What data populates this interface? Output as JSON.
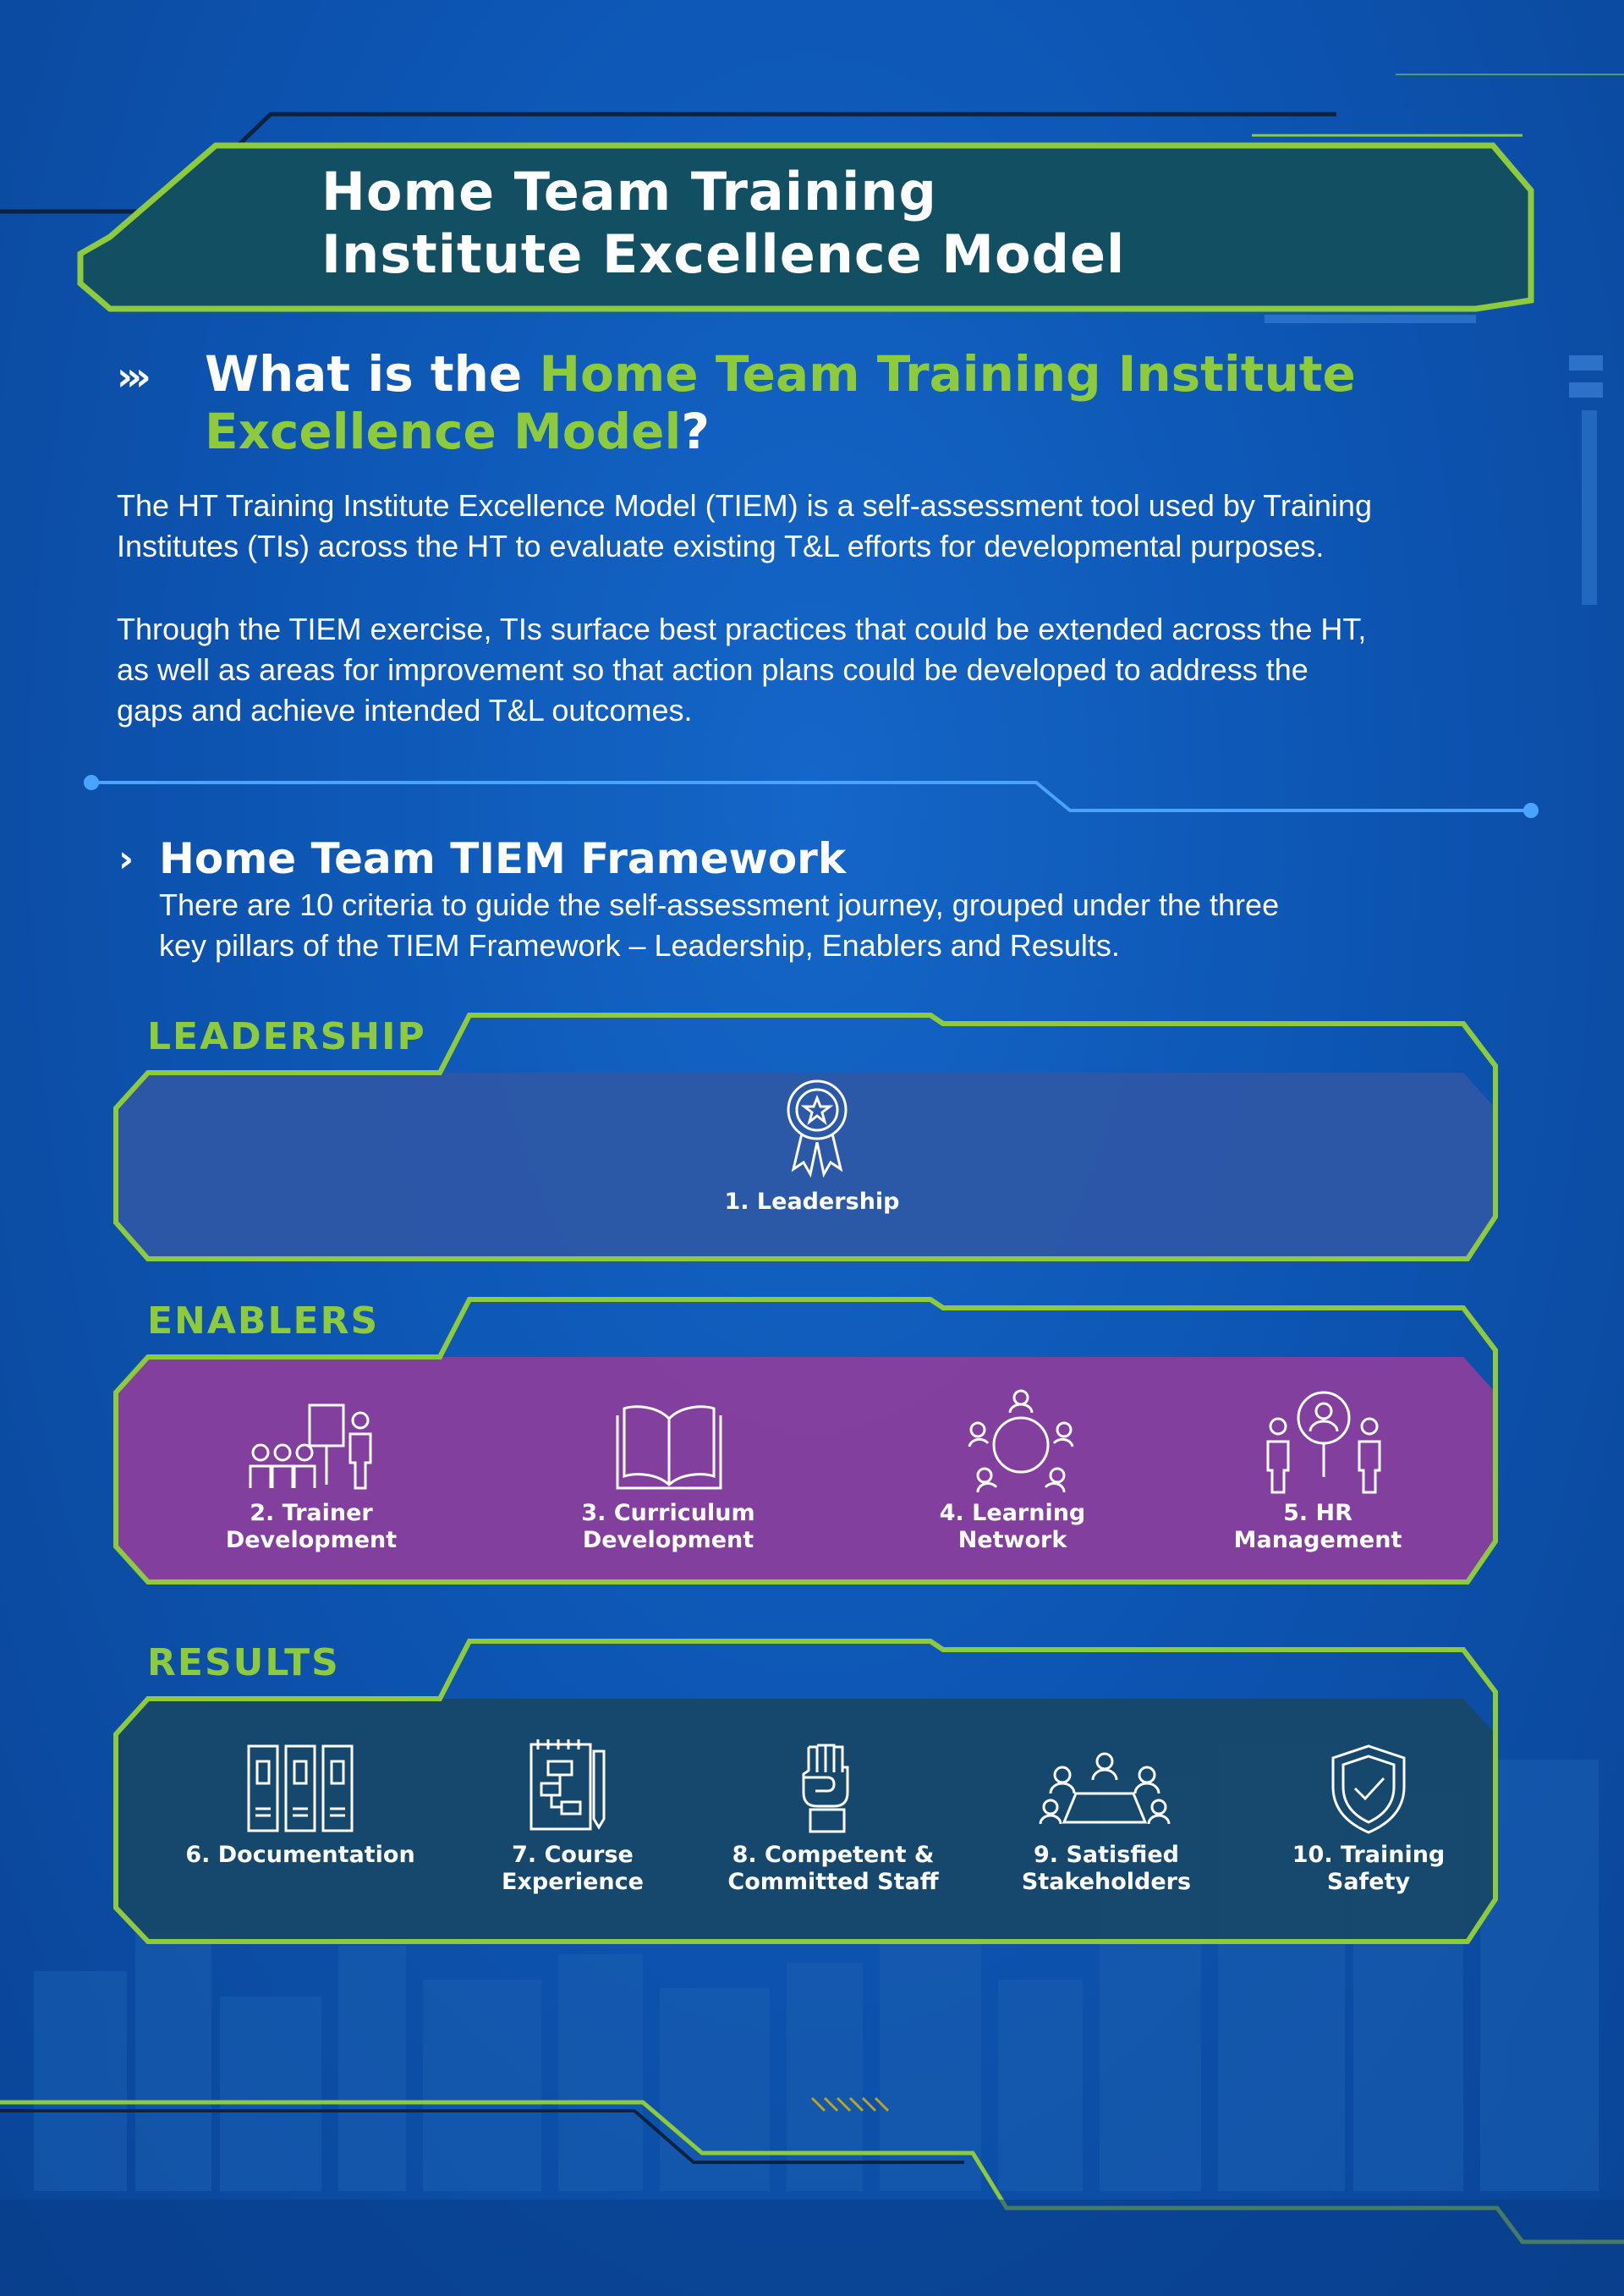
{
  "title": {
    "line1": "Home Team Training",
    "line2": "Institute Excellence Model"
  },
  "intro": {
    "arrows": "›››",
    "heading_prefix": "What is the ",
    "heading_highlight_1": "Home Team Training Institute",
    "heading_highlight_2": "Excellence Model",
    "heading_suffix": "?",
    "para1_line1": "The HT Training Institute Excellence Model (TIEM) is a self-assessment tool used by Training",
    "para1_line2": "Institutes (TIs) across the HT to evaluate existing T&L efforts for developmental purposes.",
    "para2_line1": "Through the TIEM exercise, TIs surface best practices that could be extended across the HT,",
    "para2_line2": "as well as areas for improvement so that action plans could be developed to address the",
    "para2_line3": "gaps and achieve intended T&L outcomes."
  },
  "framework": {
    "arrow": "›",
    "heading": "Home Team TIEM Framework",
    "text_line1": "There are 10 criteria to guide the self-assessment journey, grouped under the three",
    "text_line2": "key pillars of the TIEM Framework – Leadership, Enablers and Results."
  },
  "pillars": {
    "leadership": {
      "label": "LEADERSHIP",
      "color": "#2e57a6",
      "items": [
        {
          "label": "1. Leadership",
          "icon": "award-ribbon-icon"
        }
      ]
    },
    "enablers": {
      "label": "ENABLERS",
      "color": "#8a3e9c",
      "items": [
        {
          "line1": "2. Trainer",
          "line2": "Development",
          "icon": "trainer-presentation-icon"
        },
        {
          "line1": "3. Curriculum",
          "line2": "Development",
          "icon": "open-book-icon"
        },
        {
          "line1": "4. Learning",
          "line2": "Network",
          "icon": "round-table-network-icon"
        },
        {
          "line1": "5. HR",
          "line2": "Management",
          "icon": "magnifier-people-icon"
        }
      ]
    },
    "results": {
      "label": "RESULTS",
      "color": "#17486a",
      "items": [
        {
          "line1": "6. Documentation",
          "line2": "",
          "icon": "binders-icon"
        },
        {
          "line1": "7. Course",
          "line2": "Experience",
          "icon": "notebook-pencil-icon"
        },
        {
          "line1": "8. Competent &",
          "line2": "Committed Staff",
          "icon": "raised-fist-icon"
        },
        {
          "line1": "9. Satisfied",
          "line2": "Stakeholders",
          "icon": "meeting-people-icon"
        },
        {
          "line1": "10. Training",
          "line2": "Safety",
          "icon": "shield-check-icon"
        }
      ]
    }
  },
  "colors": {
    "accent_green": "#8ecb3c",
    "background_blue": "#0d56b4",
    "title_box": "#134f63"
  }
}
